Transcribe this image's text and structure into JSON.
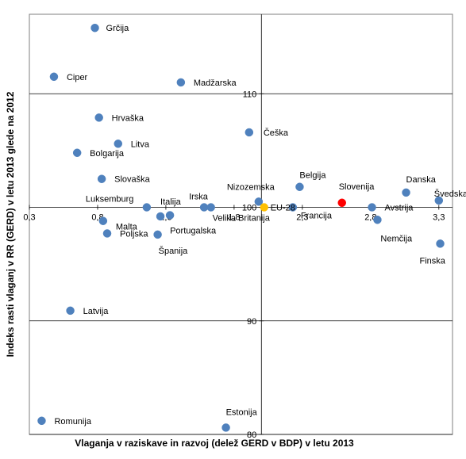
{
  "chart_data": {
    "type": "scatter",
    "xlabel": "Vlaganja  v raziskave in razvoj (delež GERD v BDP) v letu 2013",
    "ylabel": "Indeks rasti vlaganj  v RR (GERD) v letu 2013 glede na 2012",
    "xlim": [
      0.3,
      3.4
    ],
    "ylim": [
      80,
      117
    ],
    "x_ticks": [
      {
        "value": 0.3,
        "label": "0,3"
      },
      {
        "value": 0.8,
        "label": "0,8"
      },
      {
        "value": 1.3,
        "label": "1,3"
      },
      {
        "value": 1.8,
        "label": "1,8"
      },
      {
        "value": 2.3,
        "label": "2,3"
      },
      {
        "value": 2.8,
        "label": "2,8"
      },
      {
        "value": 3.3,
        "label": "3,3"
      }
    ],
    "y_ticks": [
      {
        "value": 80,
        "label": "80"
      },
      {
        "value": 90,
        "label": "90"
      },
      {
        "value": 100,
        "label": "100"
      },
      {
        "value": 110,
        "label": "110"
      }
    ],
    "crosshair": {
      "x": 2.0,
      "y": 100
    },
    "grid": false,
    "colors": {
      "default": "#4f81bd",
      "highlight": "#ff0000",
      "eu": "#ffc000",
      "axis": "#000000"
    },
    "points": [
      {
        "name": "Grčija",
        "x": 0.78,
        "y": 115.8,
        "color": "default"
      },
      {
        "name": "Ciper",
        "x": 0.48,
        "y": 111.5,
        "color": "default"
      },
      {
        "name": "Madžarska",
        "x": 1.41,
        "y": 111.0,
        "color": "default"
      },
      {
        "name": "Hrvaška",
        "x": 0.81,
        "y": 107.9,
        "color": "default"
      },
      {
        "name": "Češka",
        "x": 1.91,
        "y": 106.6,
        "color": "default"
      },
      {
        "name": "Litva",
        "x": 0.95,
        "y": 105.6,
        "color": "default"
      },
      {
        "name": "Bolgarija",
        "x": 0.65,
        "y": 104.8,
        "color": "default"
      },
      {
        "name": "Slovaška",
        "x": 0.83,
        "y": 102.5,
        "color": "default"
      },
      {
        "name": "Belgija",
        "x": 2.28,
        "y": 101.8,
        "color": "default"
      },
      {
        "name": "Danska",
        "x": 3.06,
        "y": 101.3,
        "color": "default"
      },
      {
        "name": "Švedska",
        "x": 3.3,
        "y": 100.6,
        "color": "default"
      },
      {
        "name": "Nizozemska",
        "x": 1.98,
        "y": 100.5,
        "color": "default"
      },
      {
        "name": "Slovenija",
        "x": 2.59,
        "y": 100.4,
        "color": "highlight"
      },
      {
        "name": "Luksemburg",
        "x": 1.16,
        "y": 100.0,
        "color": "default"
      },
      {
        "name": "Irska",
        "x": 1.58,
        "y": 100.0,
        "color": "default"
      },
      {
        "name": "Velika Britanija",
        "x": 1.63,
        "y": 100.0,
        "color": "default"
      },
      {
        "name": "EU-28",
        "x": 2.02,
        "y": 100.0,
        "color": "eu"
      },
      {
        "name": "Francija",
        "x": 2.23,
        "y": 100.0,
        "color": "default"
      },
      {
        "name": "Avstrija",
        "x": 2.81,
        "y": 100.0,
        "color": "default"
      },
      {
        "name": "Italija",
        "x": 1.26,
        "y": 99.2,
        "color": "default"
      },
      {
        "name": "Portugalska",
        "x": 1.33,
        "y": 99.3,
        "color": "default"
      },
      {
        "name": "Nemčija",
        "x": 2.85,
        "y": 98.9,
        "color": "default"
      },
      {
        "name": "Malta",
        "x": 0.84,
        "y": 98.8,
        "color": "default"
      },
      {
        "name": "Poljska",
        "x": 0.87,
        "y": 97.7,
        "color": "default"
      },
      {
        "name": "Španija",
        "x": 1.24,
        "y": 97.6,
        "color": "default"
      },
      {
        "name": "Finska",
        "x": 3.31,
        "y": 96.8,
        "color": "default"
      },
      {
        "name": "Latvija",
        "x": 0.6,
        "y": 90.9,
        "color": "default"
      },
      {
        "name": "Romunija",
        "x": 0.39,
        "y": 81.2,
        "color": "default"
      },
      {
        "name": "Estonija",
        "x": 1.74,
        "y": 80.6,
        "color": "default"
      }
    ]
  }
}
